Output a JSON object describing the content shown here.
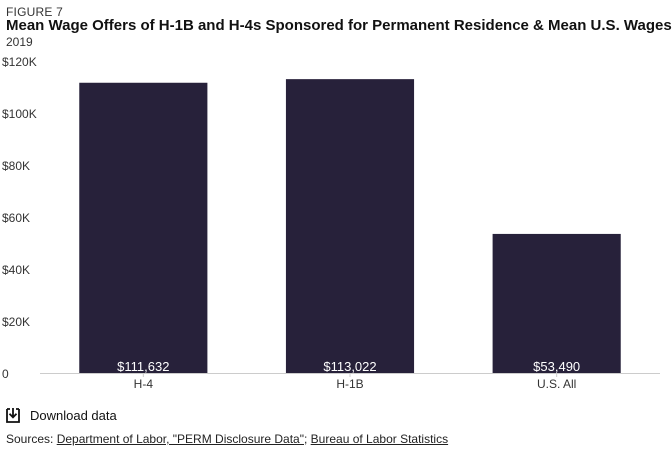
{
  "figure_label": "FIGURE 7",
  "title": "Mean Wage Offers of H-1B and H-4s Sponsored for Permanent Residence & Mean U.S. Wages",
  "subtitle": "2019",
  "download": {
    "label": "Download data",
    "icon": "download-icon"
  },
  "sources": {
    "prefix": "Sources: ",
    "link1": "Department of Labor, \"PERM Disclosure Data\"",
    "separator": "; ",
    "link2": "Bureau of Labor Statistics"
  },
  "colors": {
    "bar": "#27213a",
    "bar_label": "#ffffff",
    "axis": "#cccccc",
    "text": "#333333"
  },
  "chart_data": {
    "type": "bar",
    "categories": [
      "H-4",
      "H-1B",
      "U.S. All"
    ],
    "values": [
      111632,
      113022,
      53490
    ],
    "data_labels": [
      "$111,632",
      "$113,022",
      "$53,490"
    ],
    "ylim": [
      0,
      120000
    ],
    "yticks": [
      0,
      20000,
      40000,
      60000,
      80000,
      100000,
      120000
    ],
    "ytick_labels": [
      "0",
      "$20K",
      "$40K",
      "$60K",
      "$80K",
      "$100K",
      "$120K"
    ],
    "grid": false,
    "legend": "none"
  }
}
